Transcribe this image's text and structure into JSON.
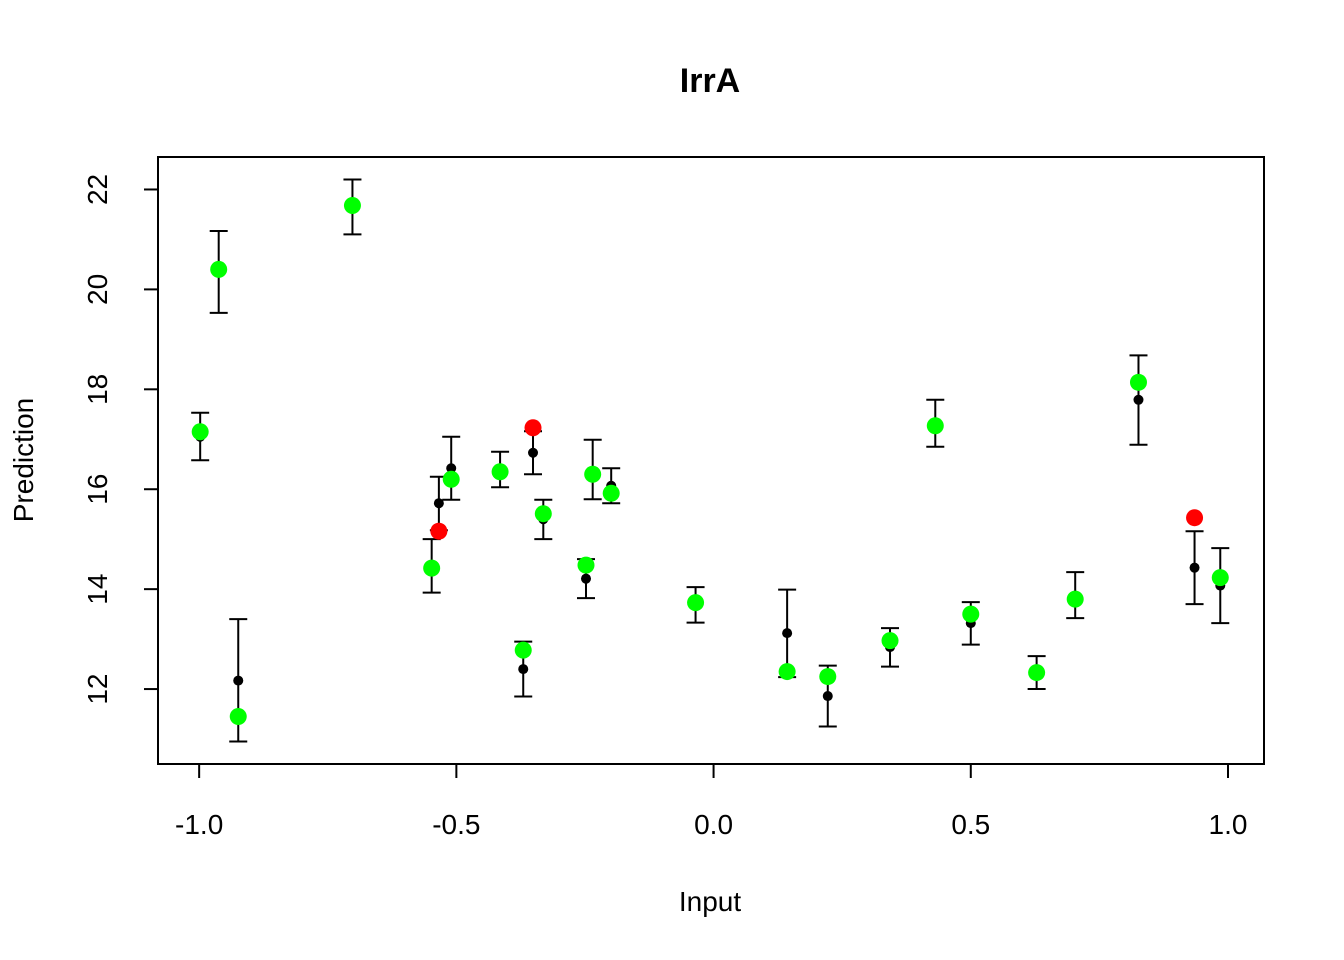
{
  "chart_data": {
    "type": "scatter",
    "title": "IrrA",
    "xlabel": "Input",
    "ylabel": "Prediction",
    "xlim": [
      -1.08,
      1.07
    ],
    "ylim": [
      10.5,
      22.65
    ],
    "xticks": [
      -1.0,
      -0.5,
      0.0,
      0.5,
      1.0
    ],
    "xtick_labels": [
      "-1.0",
      "-0.5",
      "0.0",
      "0.5",
      "1.0"
    ],
    "yticks": [
      12,
      14,
      16,
      18,
      20,
      22
    ],
    "ytick_labels": [
      "12",
      "14",
      "16",
      "18",
      "20",
      "22"
    ],
    "grid": false,
    "colors": {
      "prediction": "#000000",
      "inside": "#00ff00",
      "outside": "#ff0000",
      "errorbar": "#000000"
    },
    "predictions": [
      {
        "x": -0.998,
        "y": 17.05,
        "lo": 16.58,
        "hi": 17.53
      },
      {
        "x": -0.962,
        "y": 20.35,
        "lo": 19.53,
        "hi": 21.17
      },
      {
        "x": -0.924,
        "y": 12.17,
        "lo": 10.95,
        "hi": 13.4
      },
      {
        "x": -0.702,
        "y": 21.65,
        "lo": 21.1,
        "hi": 22.2
      },
      {
        "x": -0.548,
        "y": 14.47,
        "lo": 13.93,
        "hi": 15.0
      },
      {
        "x": -0.534,
        "y": 15.72,
        "lo": 15.18,
        "hi": 16.25
      },
      {
        "x": -0.51,
        "y": 16.42,
        "lo": 15.79,
        "hi": 17.05
      },
      {
        "x": -0.415,
        "y": 16.4,
        "lo": 16.04,
        "hi": 16.75
      },
      {
        "x": -0.37,
        "y": 12.4,
        "lo": 11.85,
        "hi": 12.95
      },
      {
        "x": -0.351,
        "y": 16.73,
        "lo": 16.3,
        "hi": 17.16
      },
      {
        "x": -0.331,
        "y": 15.4,
        "lo": 15.0,
        "hi": 15.79
      },
      {
        "x": -0.248,
        "y": 14.21,
        "lo": 13.82,
        "hi": 14.6
      },
      {
        "x": -0.235,
        "y": 16.36,
        "lo": 15.8,
        "hi": 16.99
      },
      {
        "x": -0.199,
        "y": 16.07,
        "lo": 15.72,
        "hi": 16.42
      },
      {
        "x": -0.035,
        "y": 13.69,
        "lo": 13.33,
        "hi": 14.04
      },
      {
        "x": 0.143,
        "y": 13.12,
        "lo": 12.24,
        "hi": 13.99
      },
      {
        "x": 0.222,
        "y": 11.86,
        "lo": 11.25,
        "hi": 12.47
      },
      {
        "x": 0.343,
        "y": 12.84,
        "lo": 12.45,
        "hi": 13.22
      },
      {
        "x": 0.431,
        "y": 17.32,
        "lo": 16.85,
        "hi": 17.79
      },
      {
        "x": 0.5,
        "y": 13.32,
        "lo": 12.89,
        "hi": 13.74
      },
      {
        "x": 0.628,
        "y": 12.33,
        "lo": 12.0,
        "hi": 12.66
      },
      {
        "x": 0.703,
        "y": 13.87,
        "lo": 13.42,
        "hi": 14.34
      },
      {
        "x": 0.826,
        "y": 17.79,
        "lo": 16.89,
        "hi": 18.68
      },
      {
        "x": 0.935,
        "y": 14.43,
        "lo": 13.7,
        "hi": 15.16
      },
      {
        "x": 0.985,
        "y": 14.07,
        "lo": 13.32,
        "hi": 14.82
      }
    ],
    "observations": [
      {
        "x": -0.998,
        "y": 17.15,
        "inside": true
      },
      {
        "x": -0.962,
        "y": 20.4,
        "inside": true
      },
      {
        "x": -0.924,
        "y": 11.45,
        "inside": true
      },
      {
        "x": -0.702,
        "y": 21.68,
        "inside": true
      },
      {
        "x": -0.548,
        "y": 14.42,
        "inside": true
      },
      {
        "x": -0.534,
        "y": 15.16,
        "inside": false
      },
      {
        "x": -0.51,
        "y": 16.2,
        "inside": true
      },
      {
        "x": -0.415,
        "y": 16.35,
        "inside": true
      },
      {
        "x": -0.37,
        "y": 12.78,
        "inside": true
      },
      {
        "x": -0.351,
        "y": 17.23,
        "inside": false
      },
      {
        "x": -0.331,
        "y": 15.51,
        "inside": true
      },
      {
        "x": -0.248,
        "y": 14.48,
        "inside": true
      },
      {
        "x": -0.235,
        "y": 16.3,
        "inside": true
      },
      {
        "x": -0.199,
        "y": 15.92,
        "inside": true
      },
      {
        "x": -0.035,
        "y": 13.73,
        "inside": true
      },
      {
        "x": 0.143,
        "y": 12.35,
        "inside": true
      },
      {
        "x": 0.222,
        "y": 12.25,
        "inside": true
      },
      {
        "x": 0.343,
        "y": 12.97,
        "inside": true
      },
      {
        "x": 0.431,
        "y": 17.27,
        "inside": true
      },
      {
        "x": 0.5,
        "y": 13.5,
        "inside": true
      },
      {
        "x": 0.628,
        "y": 12.33,
        "inside": true
      },
      {
        "x": 0.703,
        "y": 13.8,
        "inside": true
      },
      {
        "x": 0.826,
        "y": 18.14,
        "inside": true
      },
      {
        "x": 0.935,
        "y": 15.43,
        "inside": false
      },
      {
        "x": 0.985,
        "y": 14.23,
        "inside": true
      }
    ]
  }
}
